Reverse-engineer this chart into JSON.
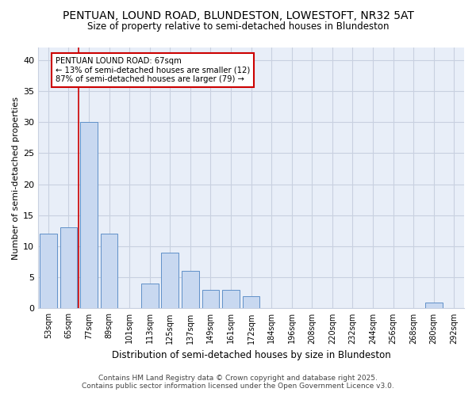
{
  "title_line1": "PENTUAN, LOUND ROAD, BLUNDESTON, LOWESTOFT, NR32 5AT",
  "title_line2": "Size of property relative to semi-detached houses in Blundeston",
  "xlabel": "Distribution of semi-detached houses by size in Blundeston",
  "ylabel": "Number of semi-detached properties",
  "categories": [
    "53sqm",
    "65sqm",
    "77sqm",
    "89sqm",
    "101sqm",
    "113sqm",
    "125sqm",
    "137sqm",
    "149sqm",
    "161sqm",
    "172sqm",
    "184sqm",
    "196sqm",
    "208sqm",
    "220sqm",
    "232sqm",
    "244sqm",
    "256sqm",
    "268sqm",
    "280sqm",
    "292sqm"
  ],
  "values": [
    12,
    13,
    30,
    12,
    0,
    4,
    9,
    6,
    3,
    3,
    2,
    0,
    0,
    0,
    0,
    0,
    0,
    0,
    0,
    1,
    0
  ],
  "bar_color": "#c8d8f0",
  "bar_edge_color": "#6090c8",
  "vline_color": "#cc0000",
  "vline_x_index": 1.5,
  "annotation_title": "PENTUAN LOUND ROAD: 67sqm",
  "annotation_line2": "← 13% of semi-detached houses are smaller (12)",
  "annotation_line3": "87% of semi-detached houses are larger (79) →",
  "annotation_box_color": "#ffffff",
  "annotation_box_edge": "#cc0000",
  "ylim": [
    0,
    42
  ],
  "yticks": [
    0,
    5,
    10,
    15,
    20,
    25,
    30,
    35,
    40
  ],
  "footer_line1": "Contains HM Land Registry data © Crown copyright and database right 2025.",
  "footer_line2": "Contains public sector information licensed under the Open Government Licence v3.0.",
  "bg_color": "#ffffff",
  "plot_bg_color": "#e8eef8",
  "grid_color": "#c8d0e0"
}
